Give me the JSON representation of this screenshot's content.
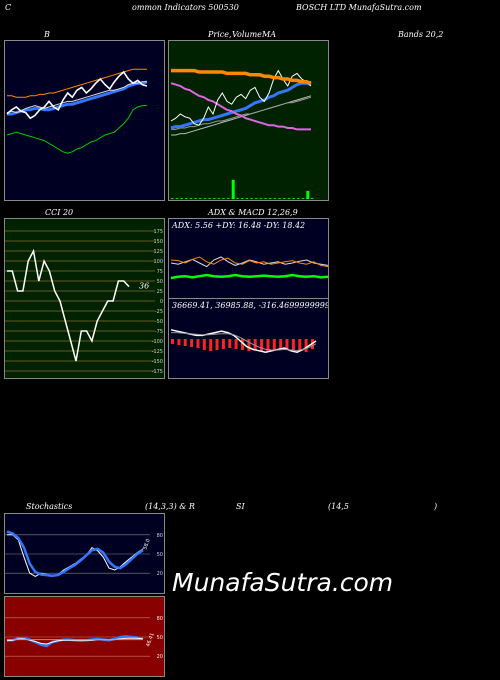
{
  "header": {
    "h1": "C",
    "h2": "ommon  Indicators 500530",
    "h3": "BOSCH LTD MunafaSutra.com"
  },
  "titles": {
    "bb": "B",
    "price": "Price,",
    "volume": "Volume",
    "ma": "MA",
    "bands": "Bands 20,2",
    "cci": "CCI 20",
    "adx": "ADX  & MACD 12,26,9",
    "stoch": "Stochastics",
    "stoch_params": "(14,3,3) & R",
    "rsi": "SI",
    "rsi_params": "(14,5",
    "rsi_close": ")"
  },
  "watermark": "MunafaSutra.com",
  "colors": {
    "bb_bg": "#000022",
    "price_bg": "#002200",
    "cci_bg": "#002200",
    "adx_bg": "#000022",
    "stoch_bg": "#000022",
    "rsi_bg": "#880000"
  },
  "chart_data": [
    {
      "type": "line",
      "panel": "bollinger-bands",
      "ylim": [
        0,
        100
      ],
      "series": [
        {
          "color": "#00cc00",
          "values": [
            40,
            41,
            42,
            41,
            40,
            39,
            38,
            37,
            36,
            34,
            32,
            30,
            28,
            27,
            28,
            30,
            31,
            33,
            35,
            36,
            38,
            40,
            41,
            42,
            45,
            48,
            52,
            58,
            60,
            61,
            61
          ]
        },
        {
          "color": "#3377ff",
          "values": [
            55,
            55,
            56,
            57,
            58,
            58,
            59,
            59,
            58,
            58,
            59,
            60,
            61,
            62,
            62,
            63,
            64,
            65,
            66,
            67,
            68,
            69,
            70,
            71,
            72,
            73,
            75,
            76,
            77,
            77,
            78
          ]
        },
        {
          "color": "#dddddd",
          "values": [
            56,
            57,
            56,
            57,
            59,
            60,
            61,
            60,
            59,
            60,
            61,
            62,
            63,
            64,
            64,
            65,
            66,
            67,
            68,
            69,
            70,
            71,
            72,
            72,
            73,
            74,
            76,
            77,
            77,
            78,
            78
          ]
        },
        {
          "color": "#ff8800",
          "values": [
            68,
            68,
            67,
            67,
            67,
            68,
            68,
            69,
            69,
            70,
            70,
            71,
            72,
            73,
            74,
            75,
            76,
            77,
            78,
            79,
            80,
            81,
            82,
            83,
            84,
            85,
            86,
            87,
            87,
            87,
            87
          ]
        },
        {
          "color": "#ffffff",
          "values": [
            55,
            58,
            60,
            57,
            56,
            52,
            54,
            58,
            60,
            64,
            60,
            58,
            65,
            70,
            67,
            72,
            74,
            70,
            73,
            77,
            80,
            76,
            73,
            78,
            82,
            85,
            80,
            77,
            79,
            76,
            75
          ]
        }
      ]
    },
    {
      "type": "line",
      "panel": "price-volume-ma",
      "ylim": [
        0,
        100
      ],
      "series": [
        {
          "color": "#bbbbbb",
          "values": [
            40,
            40,
            41,
            41,
            42,
            43,
            44,
            45,
            46,
            47,
            48,
            49,
            50,
            51,
            52,
            53,
            54,
            55,
            56,
            57,
            58,
            59,
            60,
            61,
            62,
            63,
            64,
            65,
            66,
            67,
            68
          ]
        },
        {
          "color": "#999999",
          "values": [
            44,
            44,
            45,
            45,
            46,
            46,
            47,
            48,
            48,
            49,
            50,
            50,
            51,
            52,
            53,
            54,
            55,
            55,
            56,
            57,
            58,
            59,
            60,
            61,
            62,
            63,
            63,
            64,
            65,
            66,
            67
          ]
        },
        {
          "color": "#3377ff",
          "values": [
            45,
            46,
            46,
            47,
            48,
            49,
            50,
            51,
            51,
            52,
            53,
            54,
            55,
            56,
            57,
            58,
            59,
            61,
            63,
            64,
            65,
            67,
            68,
            70,
            71,
            72,
            74,
            76,
            77,
            77,
            76
          ]
        },
        {
          "color": "#dd66dd",
          "values": [
            77,
            76,
            75,
            73,
            72,
            70,
            68,
            67,
            65,
            64,
            62,
            60,
            58,
            57,
            55,
            54,
            52,
            51,
            50,
            49,
            48,
            47,
            47,
            46,
            46,
            45,
            45,
            44,
            44,
            44,
            44
          ]
        },
        {
          "color": "#ffffff",
          "values": [
            50,
            52,
            55,
            53,
            52,
            48,
            47,
            52,
            60,
            55,
            65,
            70,
            64,
            62,
            67,
            69,
            66,
            72,
            74,
            67,
            64,
            70,
            80,
            86,
            80,
            75,
            82,
            84,
            80,
            78,
            75
          ]
        },
        {
          "color": "#ff8800",
          "values": [
            86,
            86,
            86,
            86,
            86,
            86,
            85,
            85,
            85,
            85,
            85,
            85,
            84,
            84,
            84,
            84,
            84,
            83,
            83,
            83,
            82,
            82,
            81,
            81,
            80,
            80,
            79,
            79,
            78,
            78,
            77
          ]
        }
      ],
      "volume": [
        1,
        1,
        1,
        1,
        1,
        1,
        1,
        1,
        1,
        1,
        1,
        1,
        1,
        2,
        1,
        1,
        1,
        1,
        1,
        1,
        1,
        1,
        1,
        1,
        1,
        1,
        1,
        1,
        1,
        2,
        1
      ],
      "volume_spikes": [
        {
          "index": 13,
          "value": 12
        },
        {
          "index": 29,
          "value": 5
        }
      ]
    },
    {
      "type": "line",
      "panel": "cci",
      "title": "CCI 20",
      "ylim": [
        -175,
        175
      ],
      "yticks": [
        "175",
        "150",
        "125",
        "100",
        "75",
        "50",
        "25",
        "0",
        "-25",
        "-50",
        "-75",
        "-100",
        "-125",
        "-150",
        "-175"
      ],
      "last_label": "36",
      "values": [
        75,
        75,
        25,
        25,
        100,
        125,
        50,
        100,
        75,
        25,
        0,
        -50,
        -100,
        -150,
        -75,
        -75,
        -100,
        -50,
        -25,
        0,
        0,
        50,
        50,
        36
      ]
    },
    {
      "type": "line",
      "panel": "adx",
      "title": "ADX  & MACD 12,26,9",
      "readout": "ADX: 5.56  +DY: 16.48  -DY: 18.42",
      "ylim": [
        0,
        100
      ],
      "series": [
        {
          "color": "#dddddd",
          "values": [
            50,
            48,
            52,
            56,
            50,
            44,
            55,
            60,
            52,
            46,
            50,
            55,
            52,
            48,
            50,
            52,
            48,
            50,
            53,
            55,
            50,
            48,
            46
          ]
        },
        {
          "color": "#ff8800",
          "values": [
            55,
            54,
            50,
            56,
            60,
            52,
            48,
            55,
            58,
            50,
            48,
            54,
            50,
            52,
            48,
            50,
            52,
            54,
            50,
            48,
            52,
            46,
            44
          ]
        },
        {
          "color": "#00ff00",
          "values": [
            25,
            27,
            28,
            26,
            28,
            30,
            28,
            27,
            28,
            30,
            28,
            27,
            28,
            29,
            28,
            27,
            28,
            30,
            28,
            27,
            28,
            26,
            27
          ]
        }
      ]
    },
    {
      "type": "line",
      "panel": "macd",
      "readout": "36669.41,  36985.88,  -316.46999999999",
      "ylim": [
        -100,
        100
      ],
      "series": [
        {
          "color": "#ffffff",
          "values": [
            40,
            35,
            30,
            25,
            20,
            20,
            25,
            30,
            35,
            30,
            20,
            0,
            -20,
            -30,
            -35,
            -40,
            -35,
            -30,
            -25,
            -35,
            -40,
            -30,
            -15,
            0
          ]
        },
        {
          "color": "#999999",
          "values": [
            30,
            30,
            28,
            26,
            24,
            22,
            22,
            24,
            26,
            26,
            22,
            12,
            0,
            -12,
            -22,
            -30,
            -32,
            -32,
            -30,
            -32,
            -34,
            -30,
            -22,
            -10
          ]
        }
      ],
      "histogram": [
        -10,
        -12,
        -14,
        -16,
        -18,
        -22,
        -24,
        -22,
        -20,
        -18,
        -20,
        -22,
        -24,
        -22,
        -24,
        -26,
        -24,
        -22,
        -20,
        -22,
        -24,
        -26,
        -20
      ]
    },
    {
      "type": "line",
      "panel": "stochastics",
      "title": "Stochastics",
      "ylim": [
        0,
        100
      ],
      "yticks": [
        "80",
        "50",
        "20"
      ],
      "last_label": "58.0",
      "series": [
        {
          "color": "#ffffff",
          "values": [
            80,
            80,
            72,
            45,
            20,
            15,
            20,
            18,
            15,
            18,
            25,
            30,
            35,
            42,
            48,
            60,
            55,
            45,
            28,
            25,
            30,
            38,
            45,
            52,
            58
          ]
        },
        {
          "color": "#3377ff",
          "values": [
            85,
            82,
            75,
            60,
            35,
            22,
            18,
            17,
            16,
            17,
            22,
            28,
            33,
            40,
            48,
            56,
            58,
            52,
            38,
            30,
            28,
            34,
            42,
            50,
            56
          ]
        }
      ]
    },
    {
      "type": "line",
      "panel": "rsi",
      "ylim": [
        0,
        100
      ],
      "yticks": [
        "80",
        "50",
        "20"
      ],
      "last_label": "46.41",
      "series": [
        {
          "color": "#3377ff",
          "values": [
            45,
            45,
            48,
            48,
            46,
            42,
            38,
            36,
            42,
            44,
            46,
            46,
            45,
            44,
            45,
            46,
            47,
            46,
            45,
            47,
            50,
            51,
            50,
            49,
            47
          ]
        },
        {
          "color": "#ffffff",
          "values": [
            44,
            45,
            47,
            47,
            45,
            43,
            40,
            39,
            42,
            44,
            45,
            45,
            45,
            45,
            45,
            45,
            46,
            46,
            46,
            46,
            47,
            48,
            48,
            48,
            47
          ]
        },
        {
          "color": "#ff8800",
          "values": [
            46,
            46,
            46,
            46,
            46,
            46,
            46,
            46,
            46,
            46,
            46,
            46,
            46,
            46,
            46,
            46,
            46,
            46,
            46,
            46,
            46,
            46,
            46,
            46,
            46
          ]
        }
      ]
    }
  ]
}
